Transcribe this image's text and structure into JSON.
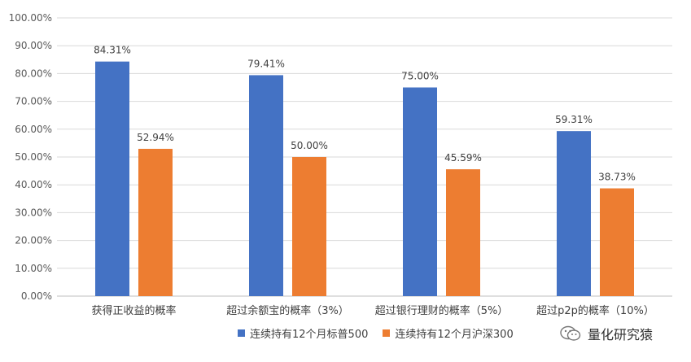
{
  "chart_data": {
    "type": "bar",
    "categories": [
      "获得正收益的概率",
      "超过余额宝的概率（3%）",
      "超过银行理财的概率（5%）",
      "超过p2p的概率（10%）"
    ],
    "series": [
      {
        "name": "连续持有12个月标普500",
        "color": "#4472C4",
        "values": [
          84.31,
          79.41,
          75.0,
          59.31
        ],
        "labels": [
          "84.31%",
          "79.41%",
          "75.00%",
          "59.31%"
        ]
      },
      {
        "name": "连续持有12个月沪深300",
        "color": "#ED7D31",
        "values": [
          52.94,
          50.0,
          45.59,
          38.73
        ],
        "labels": [
          "52.94%",
          "50.00%",
          "45.59%",
          "38.73%"
        ]
      }
    ],
    "ylim": [
      0,
      100
    ],
    "yticks": [
      "0.00%",
      "10.00%",
      "20.00%",
      "30.00%",
      "40.00%",
      "50.00%",
      "60.00%",
      "70.00%",
      "80.00%",
      "90.00%",
      "100.00%"
    ],
    "grid": true,
    "legend_position": "bottom"
  },
  "watermark": {
    "text": "量化研究猿",
    "icon": "wechat-icon"
  }
}
